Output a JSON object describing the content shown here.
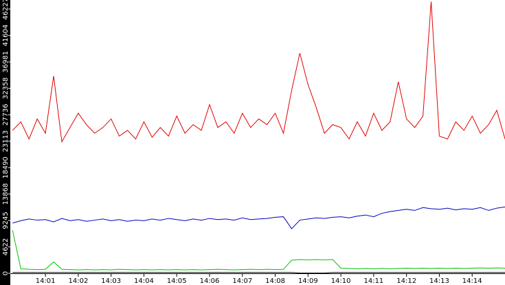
{
  "chart_data": {
    "type": "line",
    "x": [
      840,
      840.25,
      840.5,
      840.75,
      841,
      841.25,
      841.5,
      841.75,
      842,
      842.25,
      842.5,
      842.75,
      843,
      843.25,
      843.5,
      843.75,
      844,
      844.25,
      844.5,
      844.75,
      845,
      845.25,
      845.5,
      845.75,
      846,
      846.25,
      846.5,
      846.75,
      847,
      847.25,
      847.5,
      847.75,
      848,
      848.25,
      848.5,
      848.75,
      849,
      849.25,
      849.5,
      849.75,
      850,
      850.25,
      850.5,
      850.75,
      851,
      851.25,
      851.5,
      851.75,
      852,
      852.25,
      852.5,
      852.75,
      853,
      853.25,
      853.5,
      853.75,
      854,
      854.25,
      854.5,
      854.75,
      855
    ],
    "series": [
      {
        "color": "#e00000",
        "values": [
          25000,
          26500,
          23500,
          27000,
          24500,
          34500,
          23000,
          25500,
          28000,
          26000,
          24500,
          25500,
          27000,
          24000,
          25000,
          23500,
          26500,
          23800,
          25500,
          24000,
          27500,
          24500,
          26000,
          25000,
          29500,
          25500,
          26500,
          24500,
          28000,
          25500,
          27000,
          26000,
          28000,
          24500,
          32000,
          38500,
          33000,
          29000,
          24500,
          26000,
          25500,
          23500,
          26500,
          24000,
          28000,
          25000,
          26500,
          33500,
          27000,
          25500,
          27500,
          47500,
          24000,
          23500,
          26500,
          25000,
          27500,
          24500,
          26000,
          28500,
          23500
        ]
      },
      {
        "color": "#0000c0",
        "values": [
          8800,
          9200,
          9500,
          9300,
          9400,
          9000,
          9600,
          9200,
          9400,
          9100,
          9300,
          9500,
          9200,
          9400,
          9100,
          9300,
          9200,
          9500,
          9300,
          9600,
          9400,
          9200,
          9500,
          9300,
          9600,
          9400,
          9500,
          9300,
          9700,
          9400,
          9500,
          9600,
          9800,
          9900,
          7800,
          9300,
          9500,
          9700,
          9600,
          9800,
          9900,
          9700,
          10000,
          10200,
          9900,
          10500,
          10800,
          11000,
          11200,
          11000,
          11500,
          11300,
          11200,
          11400,
          11100,
          11300,
          11200,
          11500,
          11000,
          11400,
          11600
        ]
      },
      {
        "color": "#00c000",
        "values": [
          7500,
          800,
          700,
          650,
          700,
          2000,
          700,
          650,
          600,
          650,
          600,
          650,
          600,
          700,
          650,
          600,
          650,
          600,
          650,
          600,
          650,
          600,
          650,
          600,
          650,
          700,
          650,
          600,
          650,
          700,
          650,
          700,
          650,
          700,
          2300,
          2400,
          2350,
          2400,
          2350,
          2400,
          900,
          850,
          800,
          850,
          800,
          850,
          800,
          850,
          900,
          850,
          900,
          850,
          900,
          850,
          900,
          850,
          900,
          950,
          900,
          950,
          900
        ]
      },
      {
        "color": "#000000",
        "values": [
          150,
          150,
          150,
          150,
          150,
          150,
          150,
          150,
          150,
          150,
          150,
          150,
          150,
          150,
          150,
          150,
          150,
          150,
          150,
          150,
          150,
          150,
          150,
          150,
          150,
          150,
          150,
          150,
          150,
          150,
          150,
          150,
          150,
          150,
          150,
          50,
          50,
          50,
          50,
          150,
          150,
          150,
          150,
          150,
          150,
          150,
          150,
          150,
          150,
          150,
          150,
          150,
          150,
          150,
          150,
          150,
          150,
          150,
          150,
          150,
          150
        ]
      }
    ],
    "xlim": [
      839.93,
      855
    ],
    "xticks": [
      {
        "value": 841,
        "label": "14:01"
      },
      {
        "value": 842,
        "label": "14:02"
      },
      {
        "value": 843,
        "label": "14:03"
      },
      {
        "value": 844,
        "label": "14:04"
      },
      {
        "value": 845,
        "label": "14:05"
      },
      {
        "value": 846,
        "label": "14:06"
      },
      {
        "value": 847,
        "label": "14:07"
      },
      {
        "value": 848,
        "label": "14:08"
      },
      {
        "value": 849,
        "label": "14:09"
      },
      {
        "value": 850,
        "label": "14:10"
      },
      {
        "value": 851,
        "label": "14:11"
      },
      {
        "value": 852,
        "label": "14:12"
      },
      {
        "value": 853,
        "label": "14:13"
      },
      {
        "value": 854,
        "label": "14:14"
      }
    ],
    "ylim": [
      0,
      47800
    ],
    "yticks": [
      0,
      4622,
      9245,
      13868,
      18490,
      23113,
      27736,
      32358,
      36981,
      41604,
      46227
    ]
  }
}
